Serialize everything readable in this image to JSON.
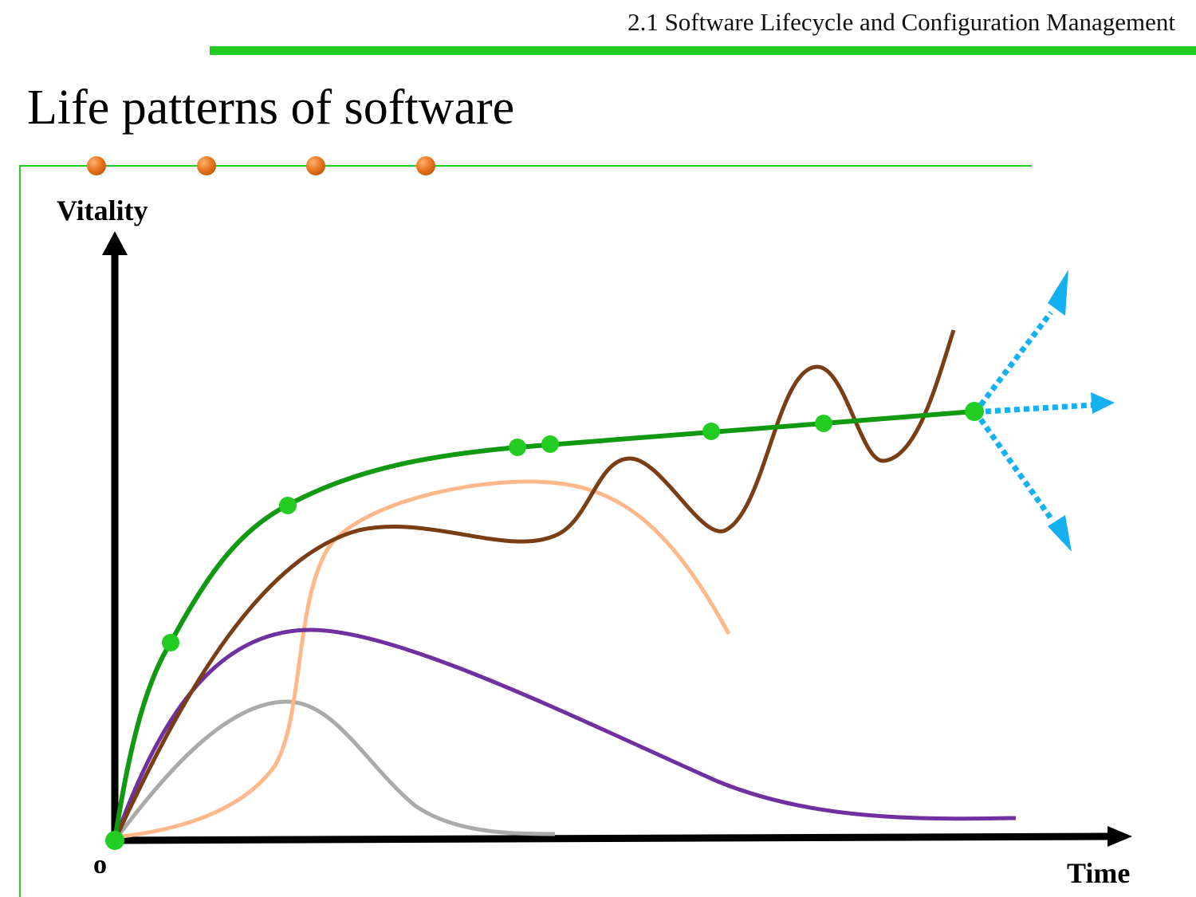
{
  "header": {
    "title": "2.1 Software Lifecycle and Configuration Management"
  },
  "slide": {
    "title": "Life patterns of software"
  },
  "diagram": {
    "y_axis_label": "Vitality",
    "x_axis_label": "Time",
    "origin_label": "o"
  },
  "colors": {
    "accent_green": "#22cc22",
    "curve_green": "#119911",
    "curve_brown": "#7a3e14",
    "curve_peach": "#ffb88a",
    "curve_purple": "#7030a0",
    "curve_gray": "#aaaaaa",
    "arrow_blue": "#14b0f0",
    "bullet_orange": "#e8761e"
  }
}
